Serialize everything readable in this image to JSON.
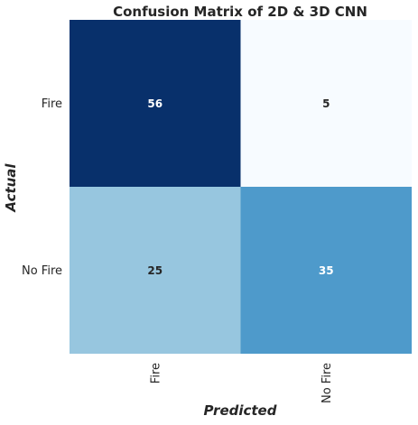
{
  "chart_data": {
    "type": "heatmap",
    "title": "Confusion Matrix of 2D & 3D CNN",
    "xlabel": "Predicted",
    "ylabel": "Actual",
    "x_categories": [
      "Fire",
      "No Fire"
    ],
    "y_categories": [
      "Fire",
      "No Fire"
    ],
    "values": [
      [
        56,
        5
      ],
      [
        25,
        35
      ]
    ],
    "colormap": "Blues",
    "color_range": [
      5,
      56
    ],
    "colorbar": false,
    "grid": false
  }
}
